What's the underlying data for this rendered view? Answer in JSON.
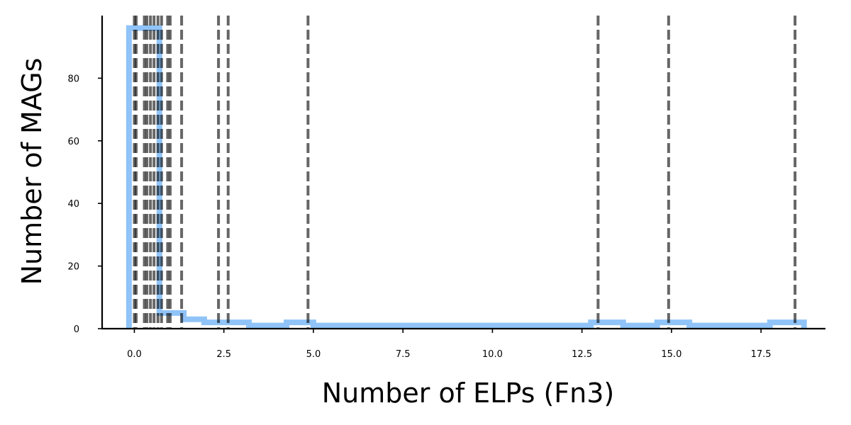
{
  "chart_data": {
    "type": "histogram",
    "xlabel": "Number of ELPs (Fn3)",
    "ylabel": "Number of MAGs",
    "xlim": [
      -0.9,
      19.3
    ],
    "ylim": [
      0,
      100
    ],
    "xticks": [
      0,
      2.5,
      5,
      7.5,
      10,
      12.5,
      15,
      17.5
    ],
    "xtick_labels": [
      "0.0",
      "2.5",
      "5.0",
      "7.5",
      "10.0",
      "12.5",
      "15.0",
      "17.5"
    ],
    "yticks": [
      0,
      20,
      40,
      60,
      80
    ],
    "ytick_labels": [
      "0",
      "20",
      "40",
      "60",
      "80"
    ],
    "histogram": {
      "edges": [
        -0.15,
        0.7,
        1.38,
        1.95,
        3.2,
        4.25,
        5.0,
        12.75,
        13.65,
        14.6,
        15.5,
        17.75,
        18.7
      ],
      "counts": [
        96,
        5,
        3,
        2,
        1,
        2,
        1,
        2,
        1,
        2,
        1,
        2
      ],
      "color": "#90C4F8"
    },
    "vlines": {
      "x": [
        0,
        0.05,
        0.28,
        0.35,
        0.45,
        0.55,
        0.66,
        0.76,
        0.93,
        1.0,
        1.32,
        2.35,
        2.62,
        4.85,
        12.95,
        14.92,
        18.45
      ],
      "color": "#000000",
      "style": "dashed"
    },
    "grid": false,
    "legend": "none"
  }
}
